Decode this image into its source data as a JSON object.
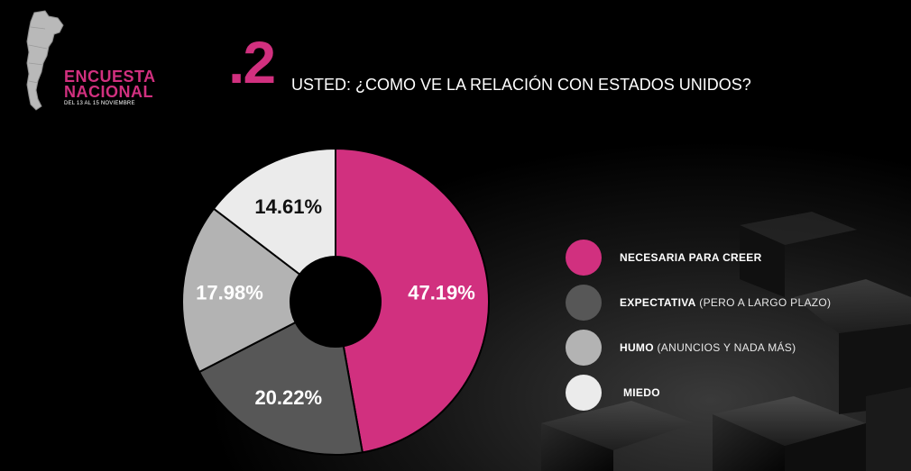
{
  "colors": {
    "brand": "#d1307f",
    "slice_1": "#d1307f",
    "slice_2": "#575757",
    "slice_3": "#b3b3b3",
    "slice_4": "#ebebeb"
  },
  "icons": {
    "logo": "argentina-map-icon"
  },
  "brand": {
    "title": "ENCUESTA\nNACIONAL",
    "subtitle": "DEL 13 AL 15 NOVIEMBRE"
  },
  "question": {
    "number": ".2",
    "text": "USTED: ¿COMO VE LA RELACIÓN CON ESTADOS UNIDOS?"
  },
  "chart_data": {
    "type": "pie",
    "style": "donut",
    "title": "",
    "legend_position": "right",
    "slices": [
      {
        "value": 47.19,
        "label": "47.19%",
        "legend_bold": "NECESARIA PARA CREER",
        "legend_rest": "",
        "color_key": "slice_1",
        "text_color": "#ffffff"
      },
      {
        "value": 20.22,
        "label": "20.22%",
        "legend_bold": "EXPECTATIVA",
        "legend_rest": " (PERO A LARGO PLAZO)",
        "color_key": "slice_2",
        "text_color": "#ffffff"
      },
      {
        "value": 17.98,
        "label": "17.98%",
        "legend_bold": "HUMO",
        "legend_rest": " (ANUNCIOS Y NADA MÁS)",
        "color_key": "slice_3",
        "text_color": "#ffffff"
      },
      {
        "value": 14.61,
        "label": "14.61%",
        "legend_bold": "MIEDO",
        "legend_rest": "",
        "color_key": "slice_4",
        "text_color": "#111111"
      }
    ]
  }
}
